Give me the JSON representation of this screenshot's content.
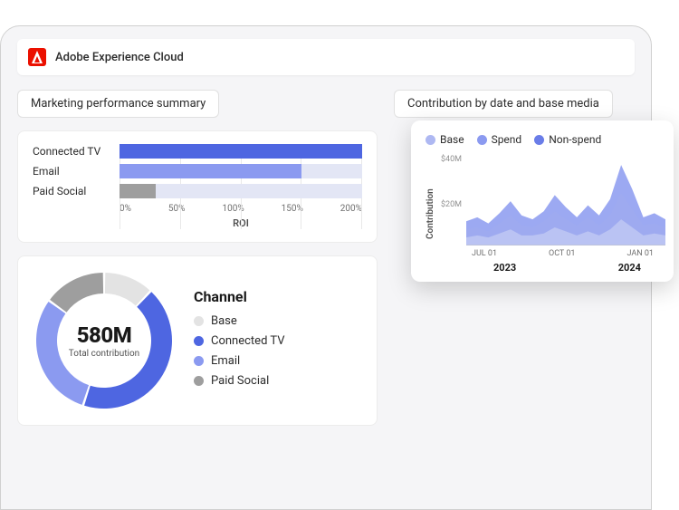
{
  "header": {
    "product_name": "Adobe Experience Cloud",
    "logo_color": "#eb1000"
  },
  "marketing_summary": {
    "section_label": "Marketing performance summary",
    "roi_chart": {
      "type": "bar",
      "xlabel": "ROI",
      "xticks": [
        "0%",
        "50%",
        "100%",
        "150%",
        "200%"
      ],
      "xlim": [
        0,
        200
      ],
      "grid_color": "#e8e8e8",
      "bars": [
        {
          "label": "Connected TV",
          "value": 200,
          "fill": "#4e66e1",
          "track": "#e3e6f5"
        },
        {
          "label": "Email",
          "value": 150,
          "fill": "#8b9af0",
          "track": "#e3e6f5"
        },
        {
          "label": "Paid Social",
          "value": 30,
          "fill": "#9e9e9e",
          "track": "#e3e6f5"
        }
      ]
    },
    "donut": {
      "type": "donut",
      "value_text": "580M",
      "sublabel": "Total contribution",
      "inner_radius": 52,
      "outer_radius": 75,
      "gap_deg": 2,
      "segments": [
        {
          "label": "Base",
          "color": "#e3e3e3",
          "pct": 12
        },
        {
          "label": "Connected TV",
          "color": "#4e66e1",
          "pct": 43
        },
        {
          "label": "Email",
          "color": "#8b9af0",
          "pct": 30
        },
        {
          "label": "Paid Social",
          "color": "#9e9e9e",
          "pct": 15
        }
      ],
      "channel_heading": "Channel",
      "legend": [
        {
          "label": "Base",
          "color": "#e3e3e3"
        },
        {
          "label": "Connected TV",
          "color": "#4e66e1"
        },
        {
          "label": "Email",
          "color": "#8b9af0"
        },
        {
          "label": "Paid Social",
          "color": "#9e9e9e"
        }
      ]
    }
  },
  "contribution": {
    "section_label": "Contribution by date and base media",
    "legend": [
      {
        "label": "Base",
        "color": "#aeb8f2"
      },
      {
        "label": "Spend",
        "color": "#8b9af0"
      },
      {
        "label": "Non-spend",
        "color": "#6a7de8"
      }
    ],
    "chart": {
      "type": "area",
      "ylabel": "Contribution",
      "yticks": [
        "$40M",
        "$20M",
        ""
      ],
      "ylim": [
        0,
        45
      ],
      "xticks": [
        "JUL 01",
        "OCT 01",
        "JAN 01"
      ],
      "years": [
        "2023",
        "2024"
      ],
      "background": "#ffffff",
      "series": [
        {
          "name": "non_spend_top",
          "color": "#8b9af0",
          "opacity": 0.85,
          "points": [
            12,
            14,
            11,
            16,
            22,
            15,
            13,
            17,
            25,
            19,
            14,
            20,
            15,
            23,
            40,
            28,
            14,
            16,
            13
          ]
        },
        {
          "name": "spend_mid",
          "color": "#9fabef",
          "opacity": 0.75,
          "points": [
            8,
            9,
            7,
            11,
            15,
            10,
            9,
            12,
            17,
            13,
            10,
            14,
            10,
            15,
            26,
            18,
            10,
            11,
            9
          ]
        },
        {
          "name": "base_bottom",
          "color": "#c6cdf4",
          "opacity": 0.7,
          "points": [
            4,
            5,
            4,
            6,
            8,
            5,
            5,
            6,
            9,
            7,
            5,
            7,
            5,
            8,
            13,
            9,
            5,
            6,
            5
          ]
        }
      ]
    }
  }
}
